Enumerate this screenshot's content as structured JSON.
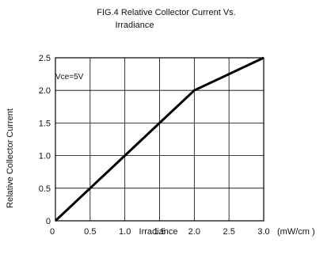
{
  "chart_data": {
    "type": "line",
    "title": "FIG.4 Relative Collector Current Vs.",
    "subtitle": "Irradiance",
    "xlabel": "Irradiance",
    "x_unit": "(mW/cm )",
    "ylabel": "Relative Collector Current",
    "annotation": "Vce=5V",
    "xlim": [
      0,
      3.0
    ],
    "ylim": [
      0,
      2.5
    ],
    "x_ticks": [
      {
        "value": 0,
        "label": "0"
      },
      {
        "value": 0.5,
        "label": "0.5"
      },
      {
        "value": 1.0,
        "label": "1.0"
      },
      {
        "value": 1.5,
        "label": "1.5"
      },
      {
        "value": 2.0,
        "label": "2.0"
      },
      {
        "value": 2.5,
        "label": "2.5"
      },
      {
        "value": 3.0,
        "label": "3.0"
      }
    ],
    "y_ticks": [
      {
        "value": 0,
        "label": "0"
      },
      {
        "value": 0.5,
        "label": "0.5"
      },
      {
        "value": 1.0,
        "label": "1.0"
      },
      {
        "value": 1.5,
        "label": "1.5"
      },
      {
        "value": 2.0,
        "label": "2.0"
      },
      {
        "value": 2.5,
        "label": "2.5"
      }
    ],
    "grid": true,
    "series": [
      {
        "x": [
          0,
          0.5,
          1.0,
          1.5,
          2.0,
          2.5,
          3.0
        ],
        "y": [
          0,
          0.5,
          1.0,
          1.5,
          2.0,
          2.25,
          2.5
        ]
      }
    ],
    "line_color": "#000000",
    "grid_color": "#000000"
  }
}
